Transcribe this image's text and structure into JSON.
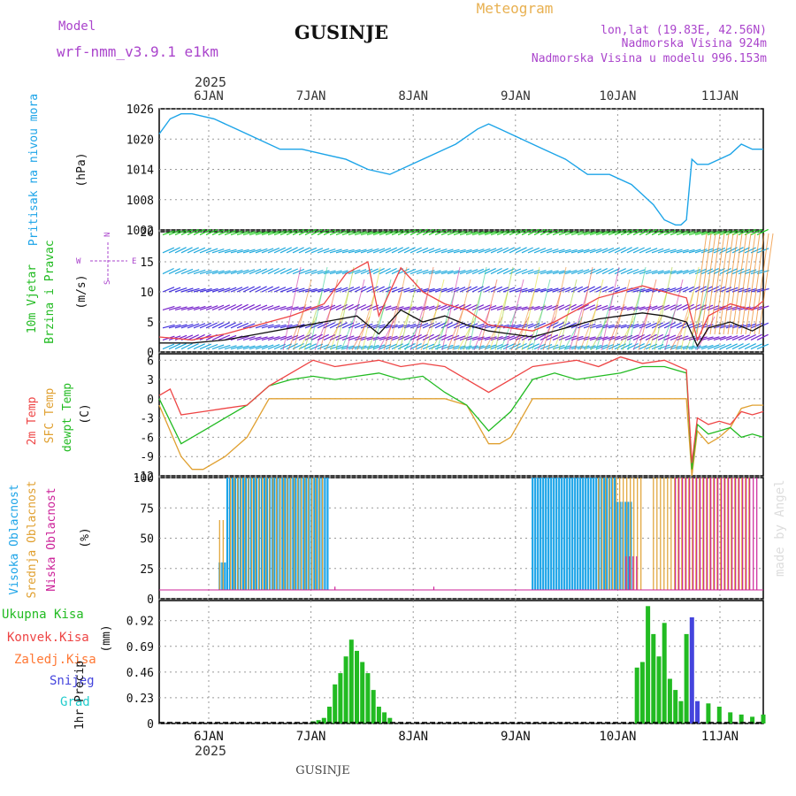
{
  "header": {
    "title": "GUSINJE",
    "model_label": "Model",
    "model_name": "wrf-nmm_v3.9.1  e1km",
    "meteogram_label": "Meteogram",
    "coords": "lon,lat (19.83E, 42.56N)",
    "elevation": "Nadmorska Visina 924m",
    "model_elevation": "Nadmorska Visina u modelu 996.153m",
    "footer": "GUSINJE",
    "watermark": "made by Angel",
    "year_top": "2025",
    "year_bottom": "2025"
  },
  "colors": {
    "pressure": "#1ca4e8",
    "temp": "#ee4444",
    "sfc_temp": "#e0a030",
    "dewpt": "#22bb22",
    "high_cloud": "#1ca4e8",
    "mid_cloud": "#e0a030",
    "low_cloud": "#cc2299",
    "total_precip": "#22bb22",
    "conv_precip": "#ee4444",
    "frz_precip": "#ff7733",
    "snow": "#4444dd",
    "hail": "#22cccc",
    "wind_label": "#22bb22",
    "axis_label": "#1ca4e8",
    "header_purple": "#aa44cc",
    "header_orange": "#e8b050"
  },
  "chart_data": [
    {
      "type": "line",
      "name": "pressure",
      "ylabel_main": "Pritisak na nivou mora",
      "ylabel_unit": "(hPa)",
      "ylim": [
        1002,
        1026
      ],
      "yticks": [
        1026,
        1020,
        1014,
        1008,
        1002
      ],
      "x_day_ticks": [
        "6JAN",
        "7JAN",
        "8JAN",
        "9JAN",
        "10JAN",
        "11JAN"
      ],
      "series": [
        {
          "x": [
            0,
            0.1,
            0.2,
            0.3,
            0.5,
            0.7,
            0.9,
            1.1,
            1.3,
            1.5,
            1.7,
            1.9,
            2.1,
            2.3,
            2.5,
            2.7,
            2.9,
            3.0,
            3.1,
            3.3,
            3.5,
            3.7,
            3.9,
            4.1,
            4.3,
            4.4,
            4.5,
            4.6,
            4.7,
            4.75,
            4.8,
            4.85,
            4.9,
            5.0,
            5.1,
            5.2,
            5.3,
            5.4,
            5.5
          ],
          "y": [
            1021,
            1024,
            1025,
            1025,
            1024,
            1022,
            1020,
            1018,
            1018,
            1017,
            1016,
            1014,
            1013,
            1015,
            1017,
            1019,
            1022,
            1023,
            1022,
            1020,
            1018,
            1016,
            1013,
            1013,
            1011,
            1009,
            1007,
            1004,
            1003,
            1003,
            1004,
            1016,
            1015,
            1015,
            1016,
            1017,
            1019,
            1018,
            1018
          ]
        }
      ]
    },
    {
      "type": "line",
      "name": "wind",
      "ylabel_main": "10m Vjetar",
      "ylabel_sub": "Brzina i Pravac",
      "ylabel_unit": "(m/s)",
      "compass_w": "W",
      "compass_e": "E",
      "compass_n": "N",
      "compass_s": "S",
      "ylim": [
        0,
        20
      ],
      "yticks": [
        20,
        15,
        10,
        5,
        0
      ],
      "series": [
        {
          "name": "speed",
          "x": [
            0,
            0.3,
            0.6,
            0.9,
            1.2,
            1.5,
            1.8,
            2.0,
            2.2,
            2.4,
            2.6,
            2.8,
            3.0,
            3.2,
            3.4,
            3.6,
            3.8,
            4.0,
            4.2,
            4.4,
            4.6,
            4.8,
            4.9,
            5.0,
            5.2,
            5.4,
            5.5
          ],
          "y": [
            1.5,
            1.5,
            2.0,
            3.0,
            4.0,
            5.0,
            6.0,
            3.0,
            7.0,
            5.0,
            6.0,
            4.5,
            3.5,
            3.0,
            2.5,
            3.5,
            4.5,
            5.5,
            6.0,
            6.5,
            6.0,
            5.0,
            1.0,
            4.0,
            5.0,
            3.5,
            4.5
          ]
        },
        {
          "name": "gust",
          "x": [
            0,
            0.3,
            0.6,
            0.9,
            1.2,
            1.5,
            1.7,
            1.9,
            2.0,
            2.2,
            2.4,
            2.6,
            2.8,
            3.0,
            3.2,
            3.4,
            3.6,
            3.8,
            4.0,
            4.2,
            4.4,
            4.6,
            4.8,
            4.9,
            5.0,
            5.2,
            5.4,
            5.5
          ],
          "y": [
            2.5,
            2.0,
            3.0,
            4.5,
            6.0,
            8.0,
            13.0,
            15.0,
            6.0,
            14.0,
            10.0,
            8.0,
            7.0,
            4.5,
            4.0,
            3.5,
            5.0,
            7.0,
            9.0,
            10.0,
            11.0,
            10.0,
            9.0,
            2.0,
            6.0,
            8.0,
            7.0,
            8.5
          ]
        }
      ]
    },
    {
      "type": "line",
      "name": "temperature",
      "ylabel_main": "2m Temp",
      "ylabel_sub": "SFC Temp",
      "ylabel_sub2": "dewpt Temp",
      "ylabel_unit": "(C)",
      "ylim": [
        -12,
        7
      ],
      "yticks": [
        6,
        3,
        0,
        -3,
        -6,
        -9,
        -12
      ],
      "series": [
        {
          "name": "2m Temp",
          "x": [
            0,
            0.1,
            0.2,
            0.4,
            0.6,
            0.8,
            1.0,
            1.2,
            1.4,
            1.6,
            1.8,
            2.0,
            2.2,
            2.4,
            2.6,
            2.8,
            3.0,
            3.2,
            3.4,
            3.6,
            3.8,
            4.0,
            4.2,
            4.4,
            4.6,
            4.8,
            4.85,
            4.9,
            5.0,
            5.1,
            5.2,
            5.3,
            5.4,
            5.5
          ],
          "y": [
            0.5,
            1.5,
            -2.5,
            -2.0,
            -1.5,
            -1.0,
            2.0,
            4.0,
            6.0,
            5.0,
            5.5,
            6.0,
            5.0,
            5.5,
            5.0,
            3.0,
            1.0,
            3.0,
            5.0,
            5.5,
            6.0,
            5.0,
            6.5,
            5.5,
            6.0,
            4.5,
            -10.0,
            -3.0,
            -4.0,
            -3.5,
            -4.0,
            -2.0,
            -2.5,
            -2.0
          ]
        },
        {
          "name": "SFC Temp",
          "x": [
            0,
            0.2,
            0.3,
            0.4,
            0.6,
            0.8,
            1.0,
            1.2,
            1.4,
            1.6,
            1.8,
            2.0,
            2.2,
            2.4,
            2.6,
            2.8,
            3.0,
            3.1,
            3.2,
            3.4,
            3.6,
            3.8,
            4.0,
            4.2,
            4.4,
            4.6,
            4.8,
            4.85,
            4.9,
            5.0,
            5.1,
            5.2,
            5.3,
            5.4,
            5.5
          ],
          "y": [
            -1.0,
            -9.0,
            -11.0,
            -11.0,
            -9.0,
            -6.0,
            0.0,
            0.0,
            0.0,
            0.0,
            0.0,
            0.0,
            0.0,
            0.0,
            0.0,
            -1.0,
            -7.0,
            -7.0,
            -6.0,
            0.0,
            0.0,
            0.0,
            0.0,
            0.0,
            0.0,
            0.0,
            0.0,
            -12.0,
            -5.0,
            -7.0,
            -6.0,
            -4.5,
            -1.5,
            -1.0,
            -1.0
          ]
        },
        {
          "name": "dewpt Temp",
          "x": [
            0,
            0.2,
            0.4,
            0.6,
            0.8,
            1.0,
            1.2,
            1.4,
            1.6,
            1.8,
            2.0,
            2.2,
            2.4,
            2.6,
            2.8,
            3.0,
            3.2,
            3.4,
            3.6,
            3.8,
            4.0,
            4.2,
            4.4,
            4.6,
            4.8,
            4.85,
            4.9,
            5.0,
            5.1,
            5.2,
            5.3,
            5.4,
            5.5
          ],
          "y": [
            0.0,
            -7.0,
            -5.0,
            -3.0,
            -1.0,
            2.0,
            3.0,
            3.5,
            3.0,
            3.5,
            4.0,
            3.0,
            3.5,
            1.0,
            -1.0,
            -5.0,
            -2.0,
            3.0,
            4.0,
            3.0,
            3.5,
            4.0,
            5.0,
            5.0,
            4.0,
            -11.0,
            -4.0,
            -5.5,
            -5.0,
            -4.5,
            -6.0,
            -5.5,
            -6.0
          ]
        }
      ]
    },
    {
      "type": "bar",
      "name": "cloudiness",
      "ylabel_main": "Visoka Oblacnost",
      "ylabel_sub": "Srednja Oblacnost",
      "ylabel_sub2": "Niska Oblacnost",
      "ylabel_unit": "(%)",
      "ylim": [
        0,
        100
      ],
      "yticks": [
        100,
        75,
        50,
        25,
        0
      ],
      "series": [
        {
          "name": "high",
          "x_range": [
            [
              0.55,
              0.62,
              30
            ],
            [
              0.62,
              1.05,
              100
            ],
            [
              1.05,
              1.55,
              100
            ],
            [
              3.4,
              4.15,
              100
            ],
            [
              4.15,
              4.3,
              80
            ]
          ]
        },
        {
          "name": "mid",
          "x_range": [
            [
              0.55,
              0.6,
              65
            ],
            [
              0.65,
              1.5,
              100
            ],
            [
              4.0,
              4.4,
              100
            ],
            [
              4.5,
              5.4,
              100
            ]
          ]
        },
        {
          "name": "low",
          "x_range": [
            [
              1.6,
              1.6,
              10
            ],
            [
              2.5,
              2.5,
              10
            ],
            [
              4.25,
              4.35,
              35
            ],
            [
              4.7,
              5.45,
              100
            ]
          ]
        }
      ]
    },
    {
      "type": "bar",
      "name": "precipitation",
      "ylabel_main": "1hr Precip",
      "ylabel_unit": "(mm)",
      "legend": [
        "Ukupna Kisa",
        "Konvek.Kisa",
        "Zaledj.Kisa",
        "Snijeg",
        "Grad"
      ],
      "ylim": [
        0,
        1.1
      ],
      "yticks": [
        0.92,
        0.69,
        0.46,
        0.23,
        0
      ],
      "series": [
        {
          "name": "Ukupna Kisa",
          "x": [
            1.4,
            1.45,
            1.5,
            1.55,
            1.6,
            1.65,
            1.7,
            1.75,
            1.8,
            1.85,
            1.9,
            1.95,
            2.0,
            2.05,
            2.1,
            4.35,
            4.4,
            4.45,
            4.5,
            4.55,
            4.6,
            4.65,
            4.7,
            4.75,
            4.8,
            4.9,
            5.0,
            5.1,
            5.2,
            5.3,
            5.4,
            5.5
          ],
          "y": [
            0.02,
            0.03,
            0.05,
            0.15,
            0.35,
            0.45,
            0.6,
            0.75,
            0.65,
            0.55,
            0.45,
            0.3,
            0.15,
            0.1,
            0.05,
            0.5,
            0.55,
            1.05,
            0.8,
            0.6,
            0.9,
            0.4,
            0.3,
            0.2,
            0.8,
            0.15,
            0.18,
            0.15,
            0.1,
            0.08,
            0.06,
            0.08
          ]
        },
        {
          "name": "Snijeg",
          "x": [
            4.85,
            4.9
          ],
          "y": [
            0.95,
            0.2
          ]
        }
      ]
    }
  ]
}
